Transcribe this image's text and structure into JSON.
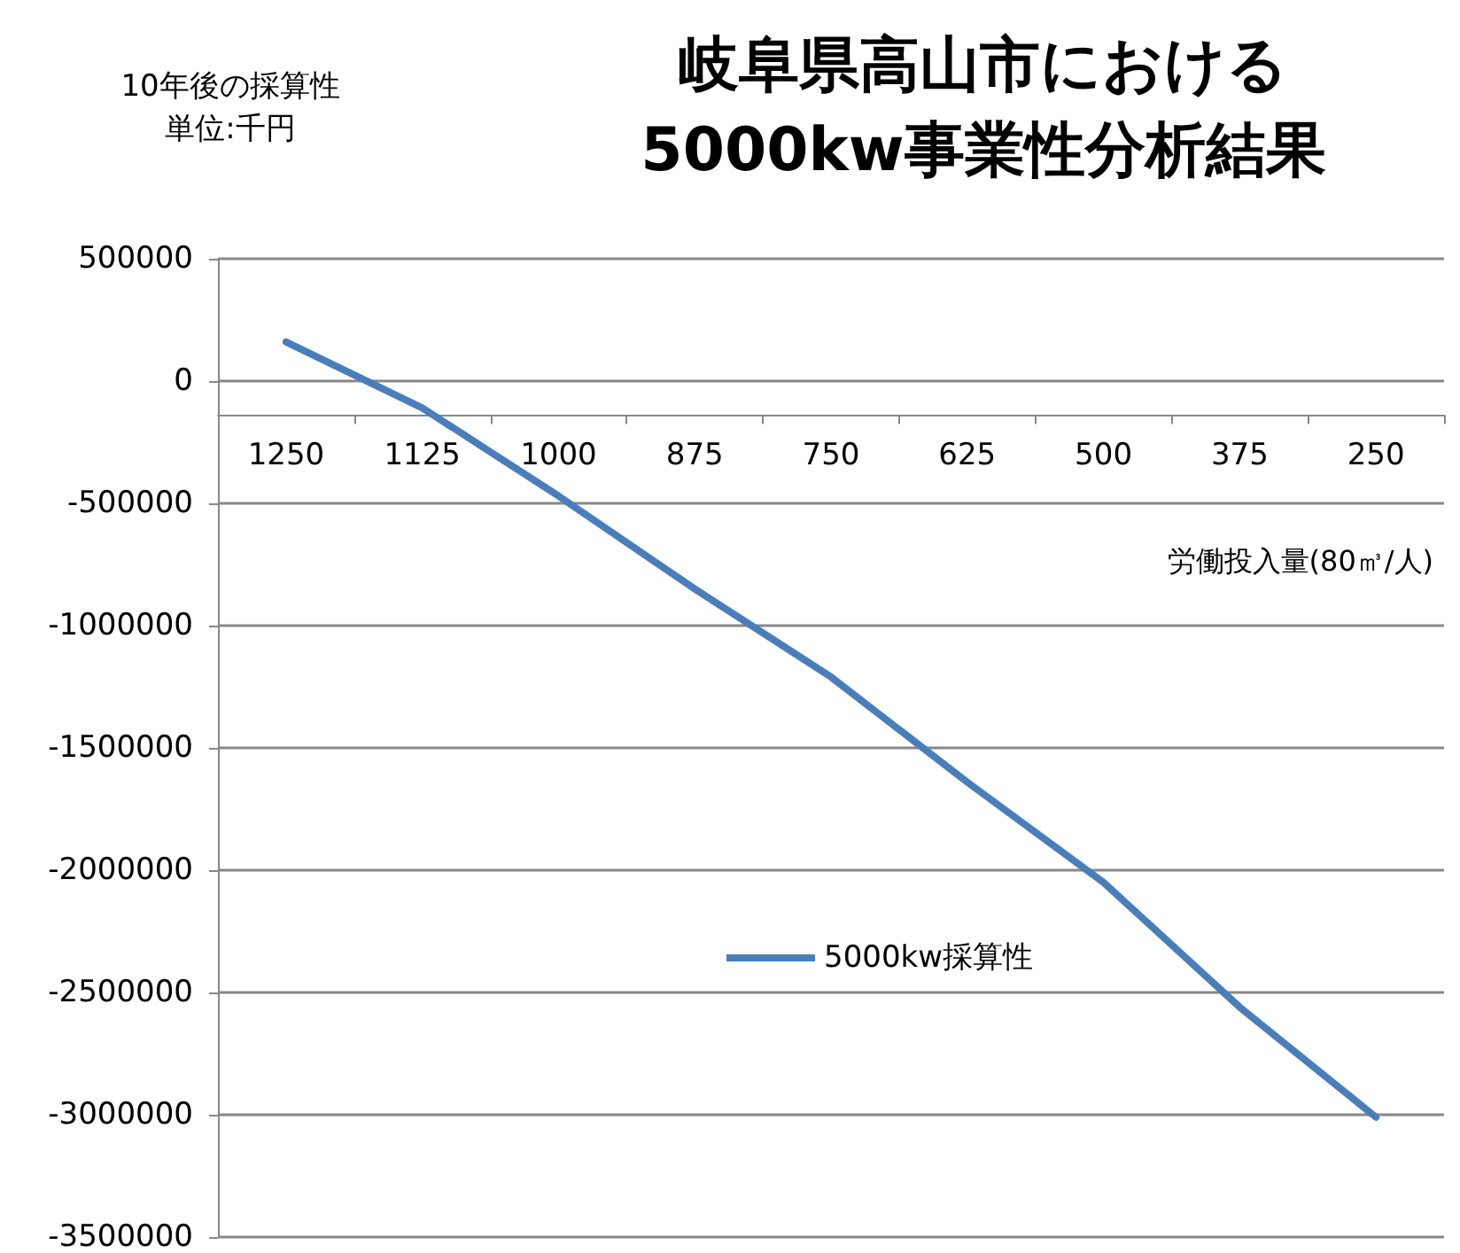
{
  "chart_data": {
    "type": "line",
    "title": "岐阜県高山市における\n5000kw事業性分析結果",
    "subtitle": "10年後の採算性",
    "ylabel": "単位:千円",
    "xlabel": "労働投入量(80㎥/人)",
    "categories": [
      "1250",
      "1125",
      "1000",
      "875",
      "750",
      "625",
      "500",
      "375",
      "250"
    ],
    "series": [
      {
        "name": "5000kw採算性",
        "color": "#4a7ebb",
        "values": [
          160000,
          -110000,
          -470000,
          -850000,
          -1210000,
          -1640000,
          -2050000,
          -2560000,
          -3010000
        ]
      }
    ],
    "ylim": [
      -3500000,
      500000
    ],
    "yticks": [
      -3500000,
      -3000000,
      -2500000,
      -2000000,
      -1500000,
      -1000000,
      -500000,
      0,
      500000
    ],
    "grid": "y",
    "legend": "bottom",
    "marker": "none",
    "line_style": "solid"
  }
}
